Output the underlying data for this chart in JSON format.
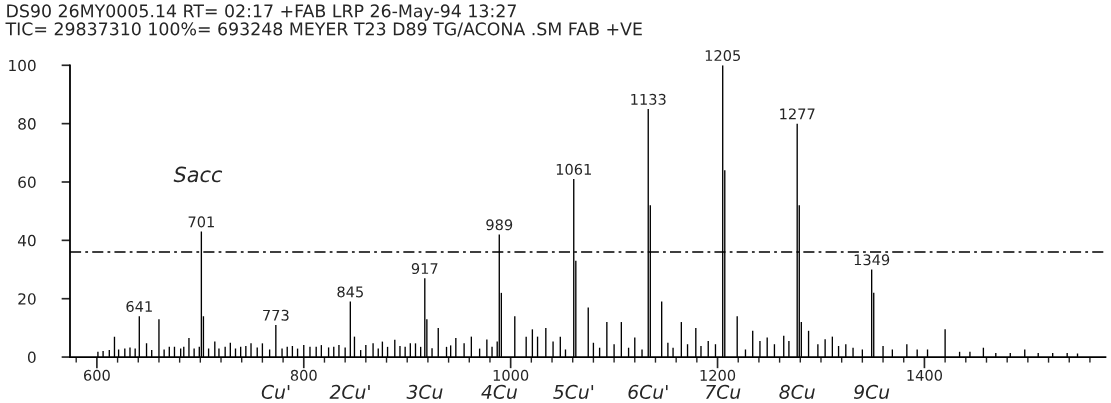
{
  "chart_data": {
    "type": "bar",
    "title": "DS90 26MY0005.14 RT= 02:17 +FAB LRP 26-May-94 13:27",
    "subtitle": "TIC= 29837310 100%= 693248 MEYER T23 D89 TG/ACONA .SM FAB +VE",
    "color": "#000000",
    "x": [
      601,
      606,
      612,
      617,
      621,
      627,
      632,
      637,
      641,
      648,
      653,
      660,
      665,
      670,
      675,
      681,
      684,
      689,
      694,
      699,
      701,
      703,
      708,
      714,
      718,
      724,
      729,
      734,
      739,
      744,
      749,
      755,
      760,
      767,
      773,
      779,
      784,
      789,
      794,
      800,
      806,
      812,
      817,
      824,
      829,
      834,
      840,
      845,
      849,
      855,
      860,
      867,
      872,
      876,
      881,
      888,
      893,
      898,
      903,
      908,
      913,
      917,
      919,
      924,
      930,
      938,
      942,
      947,
      955,
      962,
      970,
      977,
      982,
      987,
      989,
      991,
      1004,
      1015,
      1021,
      1026,
      1034,
      1041,
      1048,
      1053,
      1061,
      1063,
      1075,
      1080,
      1086,
      1093,
      1100,
      1107,
      1114,
      1120,
      1127,
      1133,
      1135,
      1146,
      1152,
      1157,
      1165,
      1171,
      1179,
      1184,
      1191,
      1198,
      1205,
      1207,
      1219,
      1227,
      1234,
      1241,
      1248,
      1255,
      1264,
      1269,
      1277,
      1279,
      1281,
      1288,
      1297,
      1304,
      1311,
      1317,
      1324,
      1331,
      1340,
      1349,
      1351,
      1360,
      1369,
      1383,
      1393,
      1403,
      1420,
      1434,
      1444,
      1457,
      1469,
      1483,
      1497,
      1510,
      1524,
      1538,
      1548
    ],
    "values": [
      1.8,
      2.1,
      2.4,
      7,
      2.6,
      2.9,
      3.3,
      2.9,
      14,
      4.7,
      2.4,
      13,
      2.6,
      3.5,
      3.5,
      2.9,
      3.5,
      6.5,
      2.9,
      3.5,
      43,
      14,
      2.9,
      5.3,
      2.9,
      3.5,
      4.9,
      2.9,
      3.5,
      3.8,
      4.7,
      3.3,
      4.7,
      2.6,
      11,
      2.9,
      3.5,
      3.8,
      2.9,
      4.1,
      3.5,
      3.5,
      4.1,
      3.3,
      3.5,
      4.1,
      3.3,
      19,
      7,
      2.4,
      4.1,
      4.7,
      2.9,
      5.3,
      3.5,
      5.9,
      3.8,
      3.5,
      4.7,
      4.7,
      3.5,
      27,
      13,
      3,
      10,
      3.5,
      4,
      6.5,
      4.7,
      7,
      2.9,
      6,
      3.5,
      5.3,
      42,
      22,
      14,
      7,
      9.5,
      7,
      10,
      5.3,
      7,
      2.6,
      61,
      33,
      17,
      4.9,
      3.2,
      12,
      4.4,
      12,
      3.2,
      6.7,
      2.6,
      85,
      52,
      19,
      4.9,
      3.2,
      12,
      4.4,
      10,
      3.8,
      5.5,
      4.4,
      100,
      64,
      14,
      2.6,
      9,
      5.5,
      6.7,
      4.4,
      7.3,
      5.5,
      80,
      52,
      12,
      9,
      4.4,
      6.1,
      7,
      3.8,
      4.4,
      3.2,
      2.6,
      30,
      22,
      3.8,
      2.6,
      4.4,
      2.6,
      2.6,
      9.5,
      1.8,
      1.8,
      3.2,
      1.4,
      1.4,
      2.6,
      1.4,
      1.4,
      1.4,
      1.2
    ],
    "xlim": [
      574,
      1575
    ],
    "ylim": [
      0,
      100
    ],
    "xticks": [
      {
        "value": 580,
        "label": null
      },
      600,
      {
        "value": 620,
        "label": null
      },
      {
        "value": 640,
        "label": null
      },
      {
        "value": 660,
        "label": null
      },
      {
        "value": 680,
        "label": null
      },
      {
        "value": 700,
        "label": null
      },
      {
        "value": 720,
        "label": null
      },
      {
        "value": 740,
        "label": null
      },
      {
        "value": 760,
        "label": null
      },
      {
        "value": 780,
        "label": null
      },
      800,
      {
        "value": 820,
        "label": null
      },
      {
        "value": 840,
        "label": null
      },
      {
        "value": 860,
        "label": null
      },
      {
        "value": 880,
        "label": null
      },
      {
        "value": 900,
        "label": null
      },
      {
        "value": 920,
        "label": null
      },
      {
        "value": 940,
        "label": null
      },
      {
        "value": 960,
        "label": null
      },
      {
        "value": 980,
        "label": null
      },
      1000,
      {
        "value": 1020,
        "label": null
      },
      {
        "value": 1040,
        "label": null
      },
      {
        "value": 1060,
        "label": null
      },
      {
        "value": 1080,
        "label": null
      },
      {
        "value": 1100,
        "label": null
      },
      {
        "value": 1120,
        "label": null
      },
      {
        "value": 1140,
        "label": null
      },
      {
        "value": 1160,
        "label": null
      },
      {
        "value": 1180,
        "label": null
      },
      1200,
      {
        "value": 1220,
        "label": null
      },
      {
        "value": 1240,
        "label": null
      },
      {
        "value": 1260,
        "label": null
      },
      {
        "value": 1280,
        "label": null
      },
      {
        "value": 1300,
        "label": null
      },
      {
        "value": 1320,
        "label": null
      },
      {
        "value": 1340,
        "label": null
      },
      {
        "value": 1360,
        "label": null
      },
      {
        "value": 1380,
        "label": null
      },
      1400,
      {
        "value": 1420,
        "label": null
      },
      {
        "value": 1440,
        "label": null
      },
      {
        "value": 1460,
        "label": null
      },
      {
        "value": 1480,
        "label": null
      },
      {
        "value": 1500,
        "label": null
      },
      {
        "value": 1520,
        "label": null
      },
      {
        "value": 1540,
        "label": null
      },
      {
        "value": 1560,
        "label": null
      }
    ],
    "yticks": [
      0,
      20,
      40,
      60,
      80,
      100
    ],
    "ref_lines": [
      {
        "axis": "y",
        "value": 36,
        "line_style": "dashed",
        "color": "#000000"
      }
    ],
    "annotations": [
      "Sacc",
      {
        "text": "641",
        "x": 641,
        "y": 14
      },
      {
        "text": "701",
        "x": 701,
        "y": 43
      },
      {
        "text": "773",
        "x": 773,
        "y": 11
      },
      {
        "text": "845",
        "x": 845,
        "y": 19
      },
      {
        "text": "917",
        "x": 917,
        "y": 27
      },
      {
        "text": "989",
        "x": 989,
        "y": 42
      },
      {
        "text": "1061",
        "x": 1061,
        "y": 61
      },
      {
        "text": "1133",
        "x": 1133,
        "y": 85
      },
      {
        "text": "1205",
        "x": 1205,
        "y": 100
      },
      {
        "text": "1277",
        "x": 1277,
        "y": 80
      },
      {
        "text": "1349",
        "x": 1349,
        "y": 30
      },
      "Cu'",
      "2Cu'",
      "3Cu",
      "4Cu",
      "5Cu'",
      "6Cu'",
      "7Cu",
      "8Cu",
      "9Cu"
    ]
  }
}
